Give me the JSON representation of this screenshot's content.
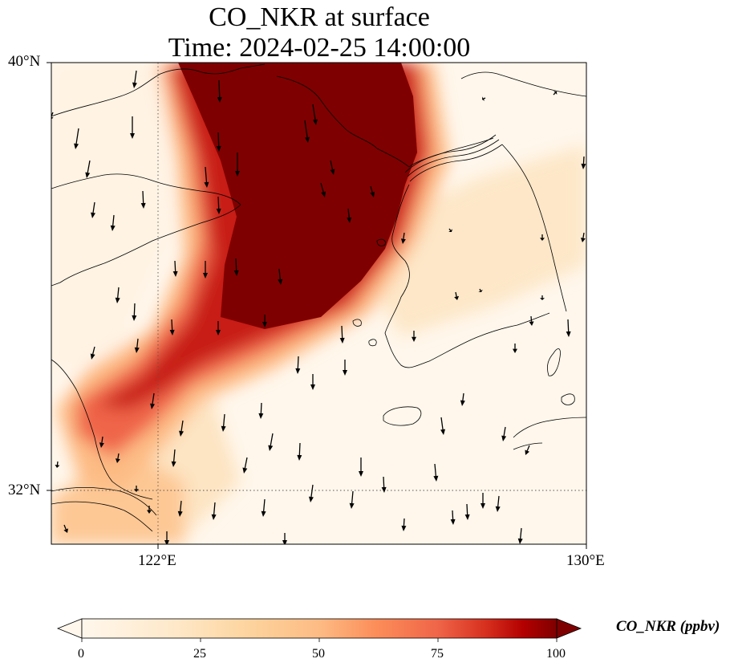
{
  "title": {
    "line1": "CO_NKR at surface",
    "line2": "Time: 2024-02-25 14:00:00"
  },
  "map": {
    "lat_ticks": [
      "40°N",
      "32°N"
    ],
    "lon_ticks": [
      "122°E",
      "130°E"
    ],
    "lat_range": [
      31,
      40
    ],
    "lon_range": [
      120,
      130
    ],
    "gridlines": "dotted at 122°E and 32°N",
    "field": "CO_NKR",
    "overlay": "wind vectors (arrows)",
    "colormap": "OrRd",
    "land_outline_color": "#000000"
  },
  "colorbar": {
    "label": "CO_NKR (ppbv)",
    "ticks": [
      "0",
      "25",
      "50",
      "75",
      "100"
    ],
    "range": [
      0,
      100
    ],
    "extend": "both",
    "colors": [
      "#fff7ec",
      "#fdd49e",
      "#fc8d59",
      "#d7301f",
      "#7f0000"
    ]
  }
}
